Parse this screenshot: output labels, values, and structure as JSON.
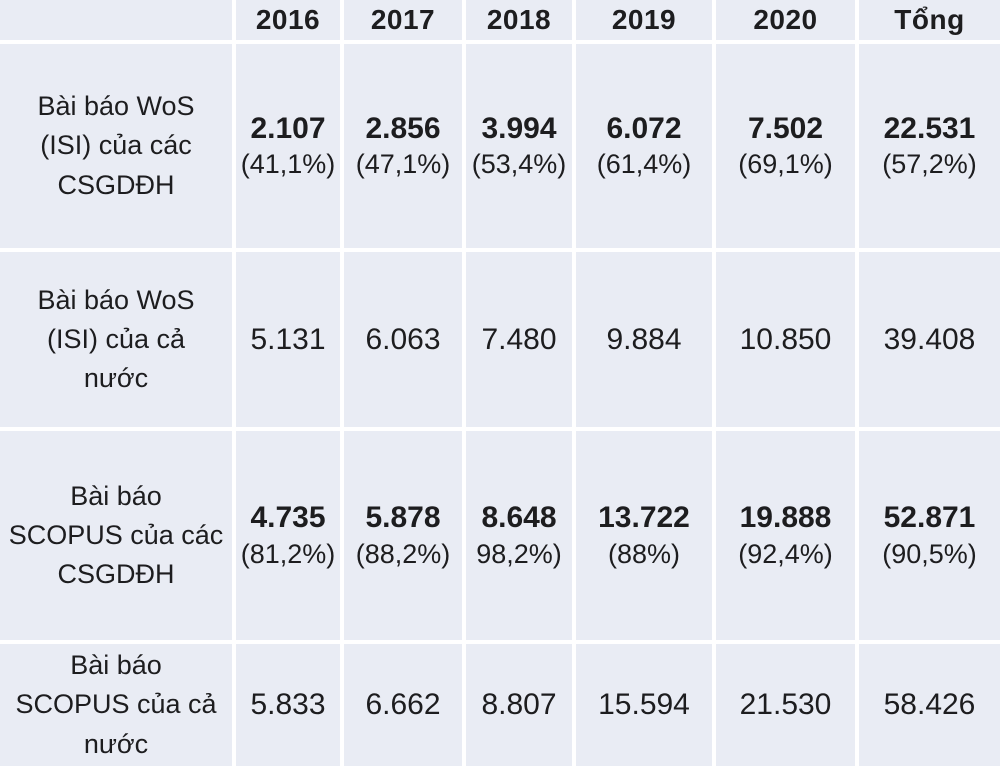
{
  "chart_data": {
    "type": "table",
    "title": "",
    "columns": [
      "2016",
      "2017",
      "2018",
      "2019",
      "2020",
      "Tổng"
    ],
    "rows": [
      {
        "label": "Bài báo WoS\n(ISI) của các\nCSGDĐH",
        "values": [
          "2.107",
          "2.856",
          "3.994",
          "6.072",
          "7.502",
          "22.531"
        ],
        "percents": [
          "(41,1%)",
          "(47,1%)",
          "(53,4%)",
          "(61,4%)",
          "(69,1%)",
          "(57,2%)"
        ]
      },
      {
        "label": "Bài báo WoS\n(ISI) của cả\nnước",
        "values": [
          "5.131",
          "6.063",
          "7.480",
          "9.884",
          "10.850",
          "39.408"
        ]
      },
      {
        "label": "Bài báo\nSCOPUS của các\nCSGDĐH",
        "values": [
          "4.735",
          "5.878",
          "8.648",
          "13.722",
          "19.888",
          "52.871"
        ],
        "percents": [
          "(81,2%)",
          "(88,2%)",
          "98,2%)",
          "(88%)",
          "(92,4%)",
          "(90,5%)"
        ]
      },
      {
        "label": "Bài báo\nSCOPUS của cả\nnước",
        "values": [
          "5.833",
          "6.662",
          "8.807",
          "15.594",
          "21.530",
          "58.426"
        ]
      }
    ]
  },
  "colors": {
    "cell_background": "#e9ecf4",
    "separator": "#ffffff",
    "text": "#1d1d1f"
  }
}
